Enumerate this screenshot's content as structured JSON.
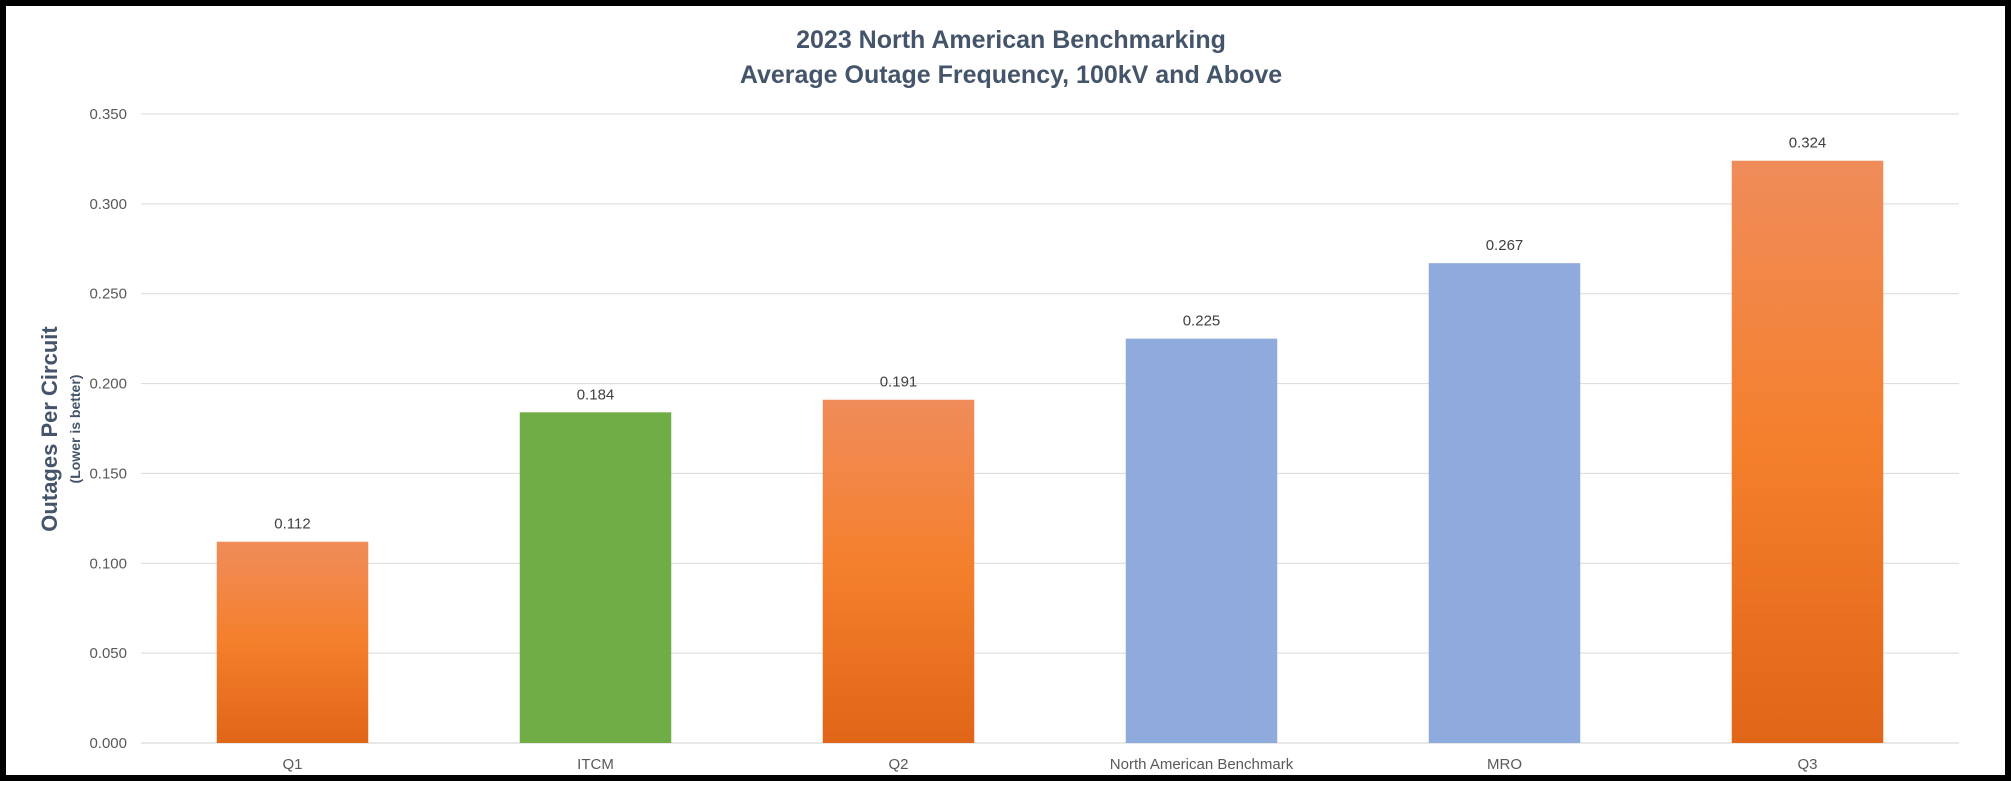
{
  "chart_data": {
    "type": "bar",
    "title": "2023 North American Benchmarking",
    "subtitle": "Average Outage Frequency, 100kV and Above",
    "xlabel": "",
    "ylabel": "Outages Per Circuit",
    "ylabel_note": "(Lower is better)",
    "categories": [
      "Q1",
      "ITCM",
      "Q2",
      "North American Benchmark",
      "MRO",
      "Q3"
    ],
    "values": [
      0.112,
      0.184,
      0.191,
      0.225,
      0.267,
      0.324
    ],
    "data_labels": [
      "0.112",
      "0.184",
      "0.191",
      "0.225",
      "0.267",
      "0.324"
    ],
    "bar_colors": [
      "orange-gradient",
      "#70ad47",
      "orange-gradient",
      "#8faadc",
      "#8faadc",
      "orange-gradient"
    ],
    "ylim": [
      0,
      0.35
    ],
    "yticks": [
      0,
      0.05,
      0.1,
      0.15,
      0.2,
      0.25,
      0.3,
      0.35
    ],
    "ytick_labels": [
      "0.000",
      "0.050",
      "0.100",
      "0.150",
      "0.200",
      "0.250",
      "0.300",
      "0.350"
    ],
    "grid": true,
    "legend": "none"
  },
  "colors": {
    "orange_top": "#f08c5a",
    "orange_mid": "#f47f2b",
    "orange_bottom": "#e06518",
    "green": "#70ad47",
    "blue": "#8faadc",
    "title": "#44546a"
  }
}
